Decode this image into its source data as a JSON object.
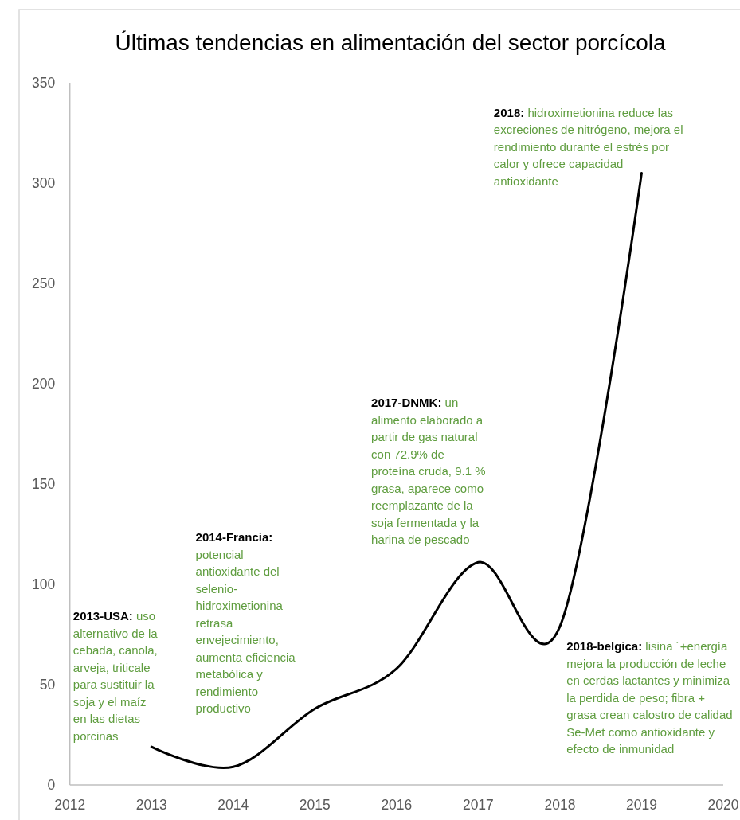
{
  "chart_data": {
    "type": "line",
    "title": "Últimas tendencias en alimentación del sector porcícola",
    "x": [
      2013,
      2014,
      2015,
      2016,
      2017,
      2018,
      2019
    ],
    "values": [
      19,
      9,
      38,
      58,
      111,
      79,
      305
    ],
    "color": "#000000",
    "xlim": [
      2012,
      2020
    ],
    "xticks": [
      2012,
      2013,
      2014,
      2015,
      2016,
      2017,
      2018,
      2019,
      2020
    ],
    "ylim": [
      0,
      350
    ],
    "yticks": [
      0,
      50,
      100,
      150,
      200,
      250,
      300,
      350
    ],
    "annotations": [
      "2013-USA: uso alternativo de la cebada, canola, arveja, triticale para sustituir la soja y el maíz en las dietas porcinas",
      "2014-Francia: potencial antioxidante del selenio-hidroximetionina retrasa envejecimiento, aumenta eficiencia metabólica y rendimiento productivo",
      "2017-DNMK: un alimento elaborado a partir de gas natural con 72.9% de proteína cruda, 9.1 % grasa, aparece como reemplazante de la soja fermentada y la harina de pescado",
      "2018: hidroximetionina reduce las excreciones de nitrógeno, mejora el rendimiento durante el estrés por calor y ofrece capacidad antioxidante",
      "2018-belgica: lisina ´+energía mejora la producción de leche en cerdas lactantes y minimiza la perdida de peso; fibra + grasa crean calostro de calidad Se-Met como antioxidante y efecto de inmunidad"
    ]
  }
}
